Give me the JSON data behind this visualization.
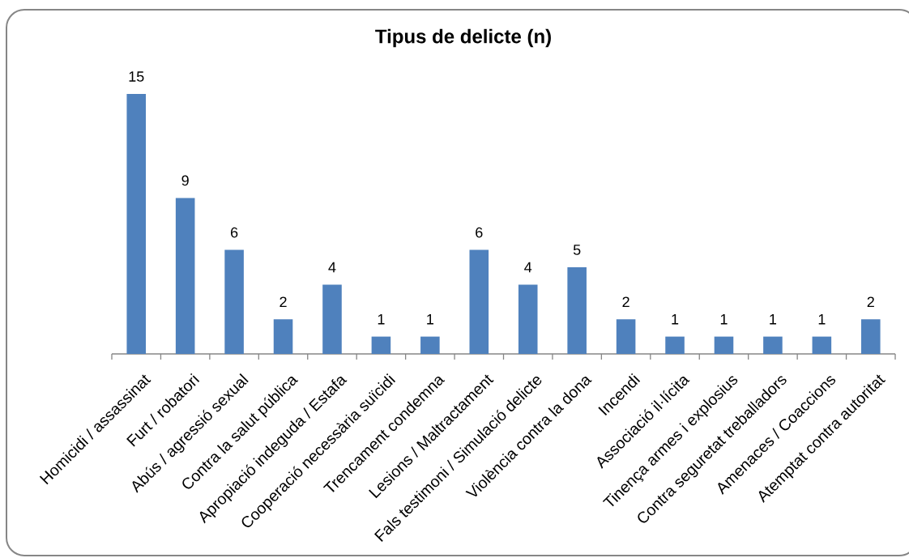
{
  "chart_data": {
    "type": "bar",
    "title": "Tipus de delicte (n)",
    "categories": [
      "Homicidi / assassinat",
      "Furt / robatori",
      "Abús / agressió sexual",
      "Contra la salut pública",
      "Apropiació indeguda / Estafa",
      "Cooperació necessària suïcidi",
      "Trencament condemna",
      "Lesions / Maltractament",
      "Fals testimoni / Simulació delicte",
      "Violència contra la dona",
      "Incendi",
      "Associació il·lícita",
      "Tinença armes i explosius",
      "Contra seguretat treballadors",
      "Amenaces / Coaccions",
      "Atemptat contra autoritat"
    ],
    "values": [
      15,
      9,
      6,
      2,
      4,
      1,
      1,
      6,
      4,
      5,
      2,
      1,
      1,
      1,
      1,
      2
    ],
    "color": "#4f81bd",
    "data_labels": true
  }
}
